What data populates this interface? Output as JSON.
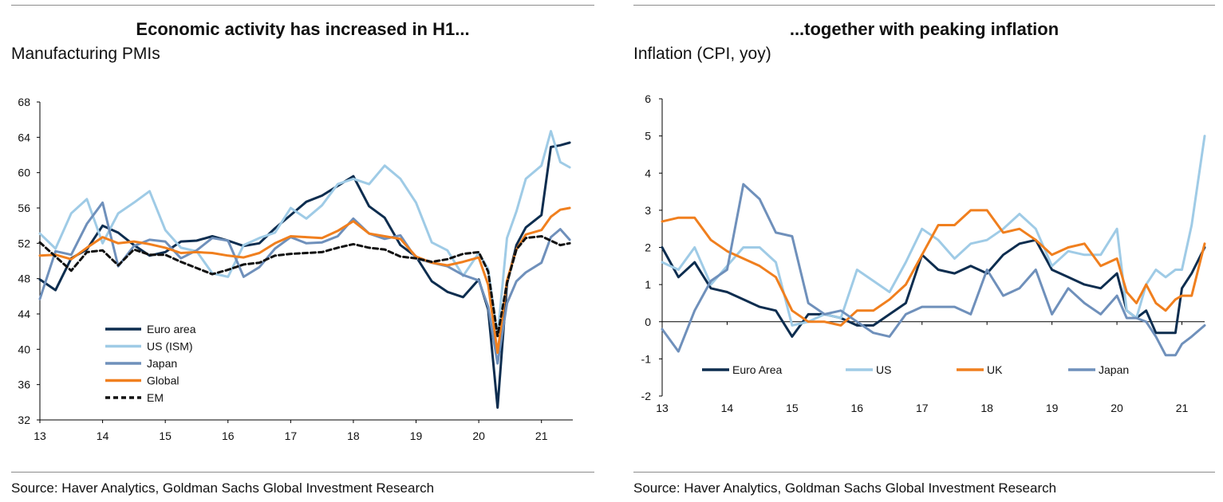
{
  "chart_data": [
    {
      "type": "line",
      "title": "Economic activity has increased in H1...",
      "subtitle": "Manufacturing PMIs",
      "source": "Source: Haver Analytics, Goldman Sachs Global Investment Research",
      "xlabel": "",
      "ylabel": "",
      "xlim": [
        2013,
        2021.5
      ],
      "ylim": [
        32,
        68
      ],
      "yticks": [
        32,
        36,
        40,
        44,
        48,
        52,
        56,
        60,
        64,
        68
      ],
      "xticks": [
        "13",
        "14",
        "15",
        "16",
        "17",
        "18",
        "19",
        "20",
        "21"
      ],
      "legend_position": "bottom-left",
      "series": [
        {
          "name": "Euro area",
          "color": "#0d2d4f",
          "dash": "solid",
          "x": [
            2013.0,
            2013.25,
            2013.5,
            2013.75,
            2014.0,
            2014.25,
            2014.5,
            2014.75,
            2015.0,
            2015.25,
            2015.5,
            2015.75,
            2016.0,
            2016.25,
            2016.5,
            2016.75,
            2017.0,
            2017.25,
            2017.5,
            2017.75,
            2018.0,
            2018.25,
            2018.5,
            2018.75,
            2019.0,
            2019.25,
            2019.5,
            2019.75,
            2020.0,
            2020.15,
            2020.3,
            2020.45,
            2020.6,
            2020.75,
            2021.0,
            2021.15,
            2021.3,
            2021.45
          ],
          "y": [
            47.9,
            46.7,
            50.3,
            51.3,
            54.0,
            53.2,
            51.8,
            50.6,
            51.0,
            52.2,
            52.3,
            52.8,
            52.3,
            51.7,
            52.0,
            53.7,
            55.2,
            56.7,
            57.4,
            58.5,
            59.6,
            56.2,
            54.9,
            51.8,
            50.5,
            47.7,
            46.5,
            45.9,
            47.9,
            44.5,
            33.4,
            47.4,
            51.8,
            53.8,
            55.2,
            62.9,
            63.1,
            63.4
          ]
        },
        {
          "name": "US (ISM)",
          "color": "#9fcbe6",
          "dash": "solid",
          "x": [
            2013.0,
            2013.25,
            2013.5,
            2013.75,
            2014.0,
            2014.25,
            2014.5,
            2014.75,
            2015.0,
            2015.25,
            2015.5,
            2015.75,
            2016.0,
            2016.25,
            2016.5,
            2016.75,
            2017.0,
            2017.25,
            2017.5,
            2017.75,
            2018.0,
            2018.25,
            2018.5,
            2018.75,
            2019.0,
            2019.25,
            2019.5,
            2019.75,
            2020.0,
            2020.15,
            2020.3,
            2020.45,
            2020.6,
            2020.75,
            2021.0,
            2021.15,
            2021.3,
            2021.45
          ],
          "y": [
            53.1,
            51.4,
            55.4,
            57.0,
            52.0,
            55.4,
            56.6,
            57.9,
            53.5,
            51.5,
            51.1,
            48.6,
            48.2,
            51.8,
            52.6,
            53.2,
            56.0,
            54.8,
            56.3,
            58.7,
            59.3,
            58.7,
            60.8,
            59.3,
            56.6,
            52.1,
            51.2,
            48.3,
            50.9,
            49.1,
            41.5,
            52.6,
            55.6,
            59.3,
            60.8,
            64.7,
            61.2,
            60.6
          ]
        },
        {
          "name": "Japan",
          "color": "#6f90bb",
          "dash": "solid",
          "x": [
            2013.0,
            2013.25,
            2013.5,
            2013.75,
            2014.0,
            2014.25,
            2014.5,
            2014.75,
            2015.0,
            2015.25,
            2015.5,
            2015.75,
            2016.0,
            2016.25,
            2016.5,
            2016.75,
            2017.0,
            2017.25,
            2017.5,
            2017.75,
            2018.0,
            2018.25,
            2018.5,
            2018.75,
            2019.0,
            2019.25,
            2019.5,
            2019.75,
            2020.0,
            2020.15,
            2020.3,
            2020.45,
            2020.6,
            2020.75,
            2021.0,
            2021.15,
            2021.3,
            2021.45
          ],
          "y": [
            45.7,
            51.1,
            50.7,
            54.2,
            56.6,
            49.4,
            51.7,
            52.4,
            52.2,
            50.3,
            51.2,
            52.6,
            52.3,
            48.2,
            49.3,
            51.4,
            52.7,
            52.0,
            52.1,
            52.8,
            54.8,
            53.1,
            52.5,
            52.9,
            50.3,
            49.8,
            49.4,
            48.4,
            47.8,
            44.8,
            38.4,
            45.2,
            47.7,
            48.7,
            49.8,
            52.7,
            53.6,
            52.4
          ]
        },
        {
          "name": "Global",
          "color": "#f07f1e",
          "dash": "solid",
          "x": [
            2013.0,
            2013.25,
            2013.5,
            2013.75,
            2014.0,
            2014.25,
            2014.5,
            2014.75,
            2015.0,
            2015.25,
            2015.5,
            2015.75,
            2016.0,
            2016.25,
            2016.5,
            2016.75,
            2017.0,
            2017.25,
            2017.5,
            2017.75,
            2018.0,
            2018.25,
            2018.5,
            2018.75,
            2019.0,
            2019.25,
            2019.5,
            2019.75,
            2020.0,
            2020.15,
            2020.3,
            2020.45,
            2020.6,
            2020.75,
            2021.0,
            2021.15,
            2021.3,
            2021.45
          ],
          "y": [
            50.6,
            50.7,
            50.2,
            51.5,
            52.7,
            52.0,
            52.2,
            51.9,
            51.5,
            50.9,
            51.0,
            50.9,
            50.6,
            50.4,
            50.9,
            52.0,
            52.8,
            52.7,
            52.6,
            53.4,
            54.5,
            53.1,
            52.8,
            52.5,
            50.5,
            49.8,
            49.5,
            49.9,
            50.4,
            47.3,
            39.6,
            47.8,
            51.3,
            53.0,
            53.5,
            55.0,
            55.8,
            56.0
          ]
        },
        {
          "name": "EM",
          "color": "#111111",
          "dash": "dashed",
          "x": [
            2013.0,
            2013.25,
            2013.5,
            2013.75,
            2014.0,
            2014.25,
            2014.5,
            2014.75,
            2015.0,
            2015.25,
            2015.5,
            2015.75,
            2016.0,
            2016.25,
            2016.5,
            2016.75,
            2017.0,
            2017.25,
            2017.5,
            2017.75,
            2018.0,
            2018.25,
            2018.5,
            2018.75,
            2019.0,
            2019.25,
            2019.5,
            2019.75,
            2020.0,
            2020.15,
            2020.3,
            2020.45,
            2020.6,
            2020.75,
            2021.0,
            2021.15,
            2021.3,
            2021.45
          ],
          "y": [
            52.1,
            50.5,
            48.9,
            51.0,
            51.2,
            49.5,
            51.3,
            50.7,
            50.7,
            49.9,
            49.2,
            48.5,
            49.0,
            49.6,
            49.8,
            50.6,
            50.8,
            50.9,
            51.0,
            51.5,
            51.9,
            51.5,
            51.3,
            50.5,
            50.3,
            49.9,
            50.2,
            50.8,
            51.0,
            48.8,
            41.5,
            47.5,
            51.3,
            52.6,
            52.8,
            52.3,
            51.8,
            52.0
          ]
        }
      ]
    },
    {
      "type": "line",
      "title": "...together with peaking inflation",
      "subtitle": "Inflation (CPI, yoy)",
      "source": "Source: Haver Analytics, Goldman Sachs Global Investment Research",
      "xlabel": "",
      "ylabel": "",
      "xlim": [
        2013,
        2021.35
      ],
      "ylim": [
        -2,
        6
      ],
      "yticks": [
        -2,
        -1,
        0,
        1,
        2,
        3,
        4,
        5,
        6
      ],
      "xticks": [
        "13",
        "14",
        "15",
        "16",
        "17",
        "18",
        "19",
        "20",
        "21"
      ],
      "legend_position": "bottom",
      "series": [
        {
          "name": "Euro Area",
          "color": "#0d2d4f",
          "dash": "solid",
          "x": [
            2013.0,
            2013.25,
            2013.5,
            2013.75,
            2014.0,
            2014.25,
            2014.5,
            2014.75,
            2015.0,
            2015.25,
            2015.5,
            2015.75,
            2016.0,
            2016.25,
            2016.5,
            2016.75,
            2017.0,
            2017.25,
            2017.5,
            2017.75,
            2018.0,
            2018.25,
            2018.5,
            2018.75,
            2019.0,
            2019.25,
            2019.5,
            2019.75,
            2020.0,
            2020.15,
            2020.3,
            2020.45,
            2020.6,
            2020.75,
            2020.9,
            2021.0,
            2021.15,
            2021.35
          ],
          "y": [
            2.0,
            1.2,
            1.6,
            0.9,
            0.8,
            0.6,
            0.4,
            0.3,
            -0.4,
            0.2,
            0.2,
            0.1,
            -0.1,
            -0.1,
            0.2,
            0.5,
            1.8,
            1.4,
            1.3,
            1.5,
            1.3,
            1.8,
            2.1,
            2.2,
            1.4,
            1.2,
            1.0,
            0.9,
            1.3,
            0.3,
            0.1,
            0.3,
            -0.3,
            -0.3,
            -0.3,
            0.9,
            1.3,
            2.0
          ]
        },
        {
          "name": "US",
          "color": "#9fcbe6",
          "dash": "solid",
          "x": [
            2013.0,
            2013.25,
            2013.5,
            2013.75,
            2014.0,
            2014.25,
            2014.5,
            2014.75,
            2015.0,
            2015.25,
            2015.5,
            2015.75,
            2016.0,
            2016.25,
            2016.5,
            2016.75,
            2017.0,
            2017.25,
            2017.5,
            2017.75,
            2018.0,
            2018.25,
            2018.5,
            2018.75,
            2019.0,
            2019.25,
            2019.5,
            2019.75,
            2020.0,
            2020.15,
            2020.3,
            2020.45,
            2020.6,
            2020.75,
            2020.9,
            2021.0,
            2021.15,
            2021.35
          ],
          "y": [
            1.6,
            1.4,
            2.0,
            1.0,
            1.5,
            2.0,
            2.0,
            1.6,
            -0.1,
            0.0,
            0.2,
            0.1,
            1.4,
            1.1,
            0.8,
            1.6,
            2.5,
            2.2,
            1.7,
            2.1,
            2.2,
            2.5,
            2.9,
            2.5,
            1.5,
            1.9,
            1.8,
            1.8,
            2.5,
            0.3,
            0.1,
            1.0,
            1.4,
            1.2,
            1.4,
            1.4,
            2.6,
            5.0
          ]
        },
        {
          "name": "UK",
          "color": "#f07f1e",
          "dash": "solid",
          "x": [
            2013.0,
            2013.25,
            2013.5,
            2013.75,
            2014.0,
            2014.25,
            2014.5,
            2014.75,
            2015.0,
            2015.25,
            2015.5,
            2015.75,
            2016.0,
            2016.25,
            2016.5,
            2016.75,
            2017.0,
            2017.25,
            2017.5,
            2017.75,
            2018.0,
            2018.25,
            2018.5,
            2018.75,
            2019.0,
            2019.25,
            2019.5,
            2019.75,
            2020.0,
            2020.15,
            2020.3,
            2020.45,
            2020.6,
            2020.75,
            2020.9,
            2021.0,
            2021.15,
            2021.35
          ],
          "y": [
            2.7,
            2.8,
            2.8,
            2.2,
            1.9,
            1.7,
            1.5,
            1.2,
            0.3,
            0.0,
            0.0,
            -0.1,
            0.3,
            0.3,
            0.6,
            1.0,
            1.8,
            2.6,
            2.6,
            3.0,
            3.0,
            2.4,
            2.5,
            2.2,
            1.8,
            2.0,
            2.1,
            1.5,
            1.7,
            0.8,
            0.5,
            1.0,
            0.5,
            0.3,
            0.6,
            0.7,
            0.7,
            2.1
          ]
        },
        {
          "name": "Japan",
          "color": "#6f90bb",
          "dash": "solid",
          "x": [
            2013.0,
            2013.25,
            2013.5,
            2013.75,
            2014.0,
            2014.25,
            2014.5,
            2014.75,
            2015.0,
            2015.25,
            2015.5,
            2015.75,
            2016.0,
            2016.25,
            2016.5,
            2016.75,
            2017.0,
            2017.25,
            2017.5,
            2017.75,
            2018.0,
            2018.25,
            2018.5,
            2018.75,
            2019.0,
            2019.25,
            2019.5,
            2019.75,
            2020.0,
            2020.15,
            2020.3,
            2020.45,
            2020.6,
            2020.75,
            2020.9,
            2021.0,
            2021.15,
            2021.35
          ],
          "y": [
            -0.2,
            -0.8,
            0.3,
            1.1,
            1.4,
            3.7,
            3.3,
            2.4,
            2.3,
            0.5,
            0.2,
            0.3,
            0.0,
            -0.3,
            -0.4,
            0.2,
            0.4,
            0.4,
            0.4,
            0.2,
            1.4,
            0.7,
            0.9,
            1.4,
            0.2,
            0.9,
            0.5,
            0.2,
            0.7,
            0.1,
            0.1,
            0.0,
            -0.4,
            -0.9,
            -0.9,
            -0.6,
            -0.4,
            -0.1
          ]
        }
      ]
    }
  ]
}
